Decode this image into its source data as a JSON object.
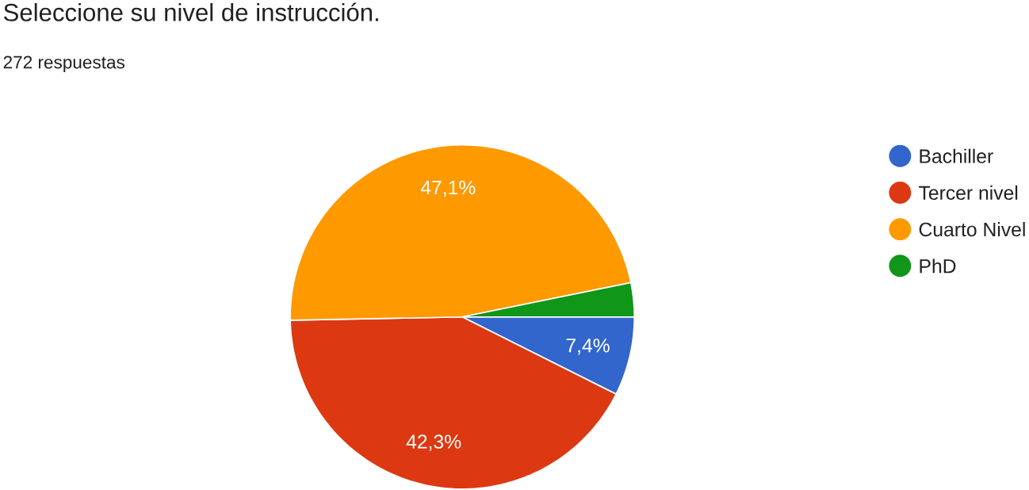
{
  "chart_data": {
    "type": "pie",
    "title": "Seleccione su nivel de instrucción.",
    "subtitle": "272 respuestas",
    "categories": [
      "Bachiller",
      "Tercer nivel",
      "Cuarto Nivel",
      "PhD"
    ],
    "values": [
      7.4,
      42.3,
      47.1,
      3.2
    ],
    "colors": [
      "#3366cc",
      "#dc3912",
      "#ff9900",
      "#109618"
    ],
    "value_labels": [
      "7,4%",
      "42,3%",
      "47,1%",
      null
    ],
    "legend": "top right"
  }
}
